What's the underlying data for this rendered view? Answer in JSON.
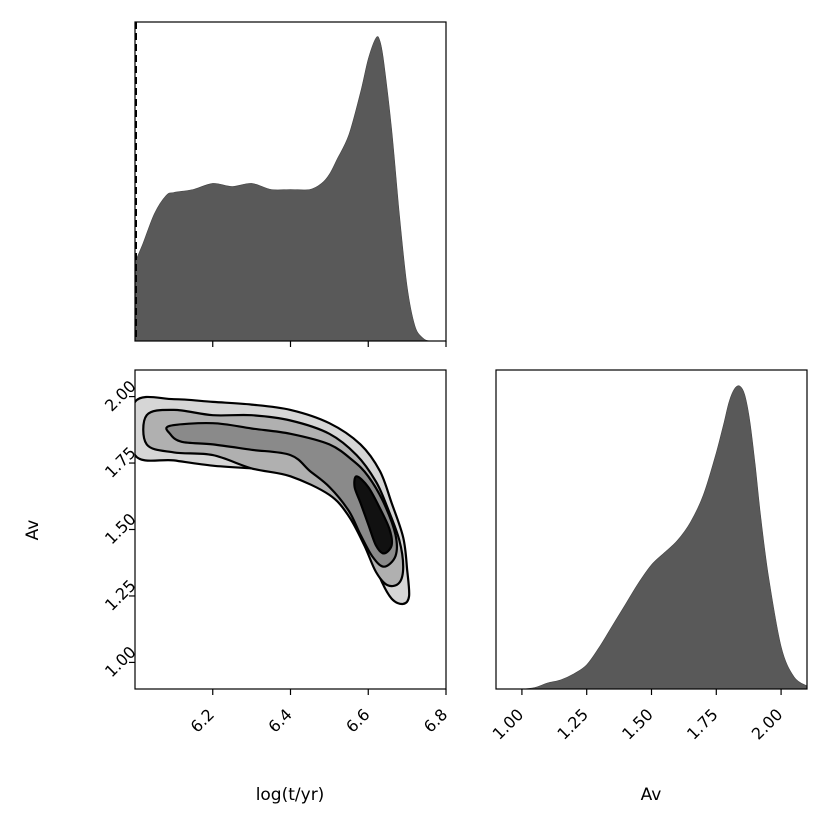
{
  "chart_data": [
    {
      "type": "area",
      "panel": "top-left marginal",
      "xlim": [
        6.0,
        6.8
      ],
      "xticks": [
        6.2,
        6.4,
        6.6,
        6.8
      ],
      "vline_x": 6.0,
      "x": [
        6.0,
        6.02,
        6.05,
        6.08,
        6.1,
        6.15,
        6.2,
        6.25,
        6.3,
        6.35,
        6.4,
        6.45,
        6.48,
        6.5,
        6.52,
        6.55,
        6.58,
        6.6,
        6.62,
        6.63,
        6.64,
        6.66,
        6.68,
        6.7,
        6.72,
        6.74,
        6.76,
        6.8
      ],
      "y": [
        0.26,
        0.32,
        0.42,
        0.48,
        0.49,
        0.5,
        0.52,
        0.51,
        0.52,
        0.5,
        0.5,
        0.5,
        0.52,
        0.55,
        0.6,
        0.68,
        0.82,
        0.93,
        1.0,
        0.99,
        0.92,
        0.7,
        0.42,
        0.18,
        0.05,
        0.01,
        0.0,
        0.0
      ],
      "fill": "#595959"
    },
    {
      "type": "contour",
      "panel": "bottom-left 2d",
      "xlabel": "log(t/yr)",
      "ylabel": "Av",
      "xlim": [
        6.0,
        6.8
      ],
      "ylim": [
        0.9,
        2.1
      ],
      "xticks": [
        6.2,
        6.4,
        6.6,
        6.8
      ],
      "yticks": [
        1.0,
        1.25,
        1.5,
        1.75,
        2.0
      ],
      "levels": [
        {
          "name": "outer",
          "fill": "#d6d6d6",
          "points": [
            [
              6.0,
              1.98
            ],
            [
              6.1,
              1.99
            ],
            [
              6.2,
              1.98
            ],
            [
              6.3,
              1.97
            ],
            [
              6.4,
              1.95
            ],
            [
              6.5,
              1.9
            ],
            [
              6.58,
              1.82
            ],
            [
              6.63,
              1.72
            ],
            [
              6.66,
              1.6
            ],
            [
              6.69,
              1.47
            ],
            [
              6.7,
              1.35
            ],
            [
              6.705,
              1.25
            ],
            [
              6.69,
              1.22
            ],
            [
              6.66,
              1.24
            ],
            [
              6.63,
              1.32
            ],
            [
              6.6,
              1.45
            ],
            [
              6.55,
              1.6
            ],
            [
              6.5,
              1.68
            ],
            [
              6.4,
              1.72
            ],
            [
              6.3,
              1.73
            ],
            [
              6.2,
              1.74
            ],
            [
              6.1,
              1.76
            ],
            [
              6.0,
              1.78
            ]
          ]
        },
        {
          "name": "middle",
          "fill": "#b0b0b0",
          "points": [
            [
              6.03,
              1.93
            ],
            [
              6.1,
              1.95
            ],
            [
              6.2,
              1.93
            ],
            [
              6.3,
              1.93
            ],
            [
              6.4,
              1.91
            ],
            [
              6.5,
              1.86
            ],
            [
              6.57,
              1.78
            ],
            [
              6.62,
              1.68
            ],
            [
              6.65,
              1.58
            ],
            [
              6.68,
              1.46
            ],
            [
              6.69,
              1.36
            ],
            [
              6.68,
              1.3
            ],
            [
              6.65,
              1.29
            ],
            [
              6.62,
              1.34
            ],
            [
              6.59,
              1.44
            ],
            [
              6.55,
              1.55
            ],
            [
              6.5,
              1.63
            ],
            [
              6.4,
              1.7
            ],
            [
              6.3,
              1.73
            ],
            [
              6.2,
              1.78
            ],
            [
              6.1,
              1.79
            ],
            [
              6.03,
              1.82
            ]
          ]
        },
        {
          "name": "inner",
          "fill": "#8a8a8a",
          "points": [
            [
              6.09,
              1.89
            ],
            [
              6.2,
              1.9
            ],
            [
              6.3,
              1.88
            ],
            [
              6.4,
              1.86
            ],
            [
              6.5,
              1.82
            ],
            [
              6.56,
              1.76
            ],
            [
              6.6,
              1.7
            ],
            [
              6.64,
              1.6
            ],
            [
              6.67,
              1.48
            ],
            [
              6.67,
              1.4
            ],
            [
              6.64,
              1.36
            ],
            [
              6.61,
              1.4
            ],
            [
              6.58,
              1.48
            ],
            [
              6.55,
              1.57
            ],
            [
              6.5,
              1.66
            ],
            [
              6.45,
              1.72
            ],
            [
              6.4,
              1.78
            ],
            [
              6.3,
              1.8
            ],
            [
              6.2,
              1.82
            ],
            [
              6.12,
              1.83
            ],
            [
              6.09,
              1.86
            ]
          ]
        },
        {
          "name": "core",
          "fill": "#111111",
          "points": [
            [
              6.57,
              1.7
            ],
            [
              6.6,
              1.66
            ],
            [
              6.63,
              1.58
            ],
            [
              6.655,
              1.5
            ],
            [
              6.66,
              1.44
            ],
            [
              6.64,
              1.41
            ],
            [
              6.62,
              1.44
            ],
            [
              6.6,
              1.52
            ],
            [
              6.58,
              1.6
            ],
            [
              6.565,
              1.66
            ]
          ]
        }
      ]
    },
    {
      "type": "area",
      "panel": "bottom-right marginal",
      "xlabel": "Av",
      "xlim": [
        0.9,
        2.1
      ],
      "xticks": [
        1.0,
        1.25,
        1.5,
        1.75,
        2.0
      ],
      "x": [
        0.9,
        1.0,
        1.05,
        1.1,
        1.15,
        1.2,
        1.25,
        1.3,
        1.35,
        1.4,
        1.45,
        1.5,
        1.55,
        1.6,
        1.65,
        1.7,
        1.75,
        1.78,
        1.8,
        1.82,
        1.84,
        1.86,
        1.88,
        1.9,
        1.92,
        1.95,
        2.0,
        2.05,
        2.1
      ],
      "y": [
        0.0,
        0.0,
        0.005,
        0.02,
        0.03,
        0.05,
        0.08,
        0.14,
        0.21,
        0.28,
        0.35,
        0.41,
        0.45,
        0.49,
        0.55,
        0.64,
        0.78,
        0.88,
        0.95,
        0.99,
        1.0,
        0.97,
        0.88,
        0.74,
        0.58,
        0.38,
        0.14,
        0.04,
        0.01
      ],
      "fill": "#595959"
    }
  ],
  "labels": {
    "top_x_ticks": [
      "6.2",
      "6.4",
      "6.6",
      "6.8"
    ],
    "left_x_ticks": [
      "6.2",
      "6.4",
      "6.6",
      "6.8"
    ],
    "left_y_ticks": [
      "1.00",
      "1.25",
      "1.50",
      "1.75",
      "2.00"
    ],
    "right_x_ticks": [
      "1.00",
      "1.25",
      "1.50",
      "1.75",
      "2.00"
    ],
    "left_xlabel": "log(t/yr)",
    "left_ylabel": "Av",
    "right_xlabel": "Av"
  }
}
